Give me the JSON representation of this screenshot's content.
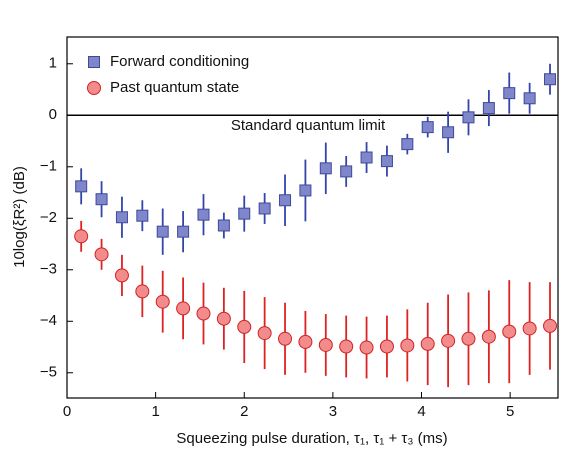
{
  "chart_data": {
    "type": "scatter",
    "xlabel": "Squeezing pulse duration, τ₁, τ₁ + τ₃ (ms)",
    "ylabel": "10log(ξR²) (dB)",
    "annotation": "Standard quantum limit",
    "hline": 0,
    "legend": "upper left",
    "x": [
      0.16,
      0.39,
      0.62,
      0.85,
      1.08,
      1.31,
      1.54,
      1.77,
      2.0,
      2.23,
      2.46,
      2.69,
      2.92,
      3.15,
      3.38,
      3.61,
      3.84,
      4.07,
      4.3,
      4.53,
      4.76,
      4.99,
      5.22,
      5.45
    ],
    "series": [
      {
        "name": "Forward conditioning",
        "marker": "square",
        "color": "#7f86c9",
        "edge": "#3d4a9c",
        "errcolor": "#3344aa",
        "values": [
          -1.38,
          -1.63,
          -1.98,
          -1.95,
          -2.26,
          -2.26,
          -1.93,
          -2.14,
          -1.91,
          -1.81,
          -1.65,
          -1.46,
          -1.03,
          -1.09,
          -0.82,
          -0.89,
          -0.56,
          -0.23,
          -0.33,
          -0.04,
          0.14,
          0.43,
          0.33,
          0.7
        ],
        "errors": [
          0.35,
          0.35,
          0.4,
          0.3,
          0.45,
          0.4,
          0.4,
          0.25,
          0.35,
          0.3,
          0.5,
          0.6,
          0.5,
          0.3,
          0.3,
          0.3,
          0.2,
          0.2,
          0.4,
          0.35,
          0.35,
          0.4,
          0.3,
          0.3
        ]
      },
      {
        "name": "Past quantum state",
        "marker": "circle",
        "color": "#f28b8b",
        "edge": "#d02424",
        "errcolor": "#dd2222",
        "values": [
          -2.35,
          -2.7,
          -3.11,
          -3.42,
          -3.62,
          -3.75,
          -3.85,
          -3.95,
          -4.11,
          -4.23,
          -4.34,
          -4.4,
          -4.46,
          -4.49,
          -4.51,
          -4.49,
          -4.47,
          -4.44,
          -4.38,
          -4.34,
          -4.3,
          -4.2,
          -4.14,
          -4.09
        ],
        "errors": [
          0.3,
          0.3,
          0.4,
          0.5,
          0.6,
          0.6,
          0.6,
          0.6,
          0.7,
          0.7,
          0.7,
          0.6,
          0.6,
          0.6,
          0.6,
          0.6,
          0.7,
          0.8,
          0.9,
          0.9,
          0.9,
          1.0,
          0.9,
          0.85
        ]
      }
    ],
    "xlim": [
      0,
      5.54
    ],
    "ylim": [
      -5.49,
      1.52
    ],
    "xticks": [
      0,
      1,
      2,
      3,
      4,
      5
    ],
    "yticks": [
      {
        "value": -5,
        "label": "−5"
      },
      {
        "value": -4,
        "label": "−4"
      },
      {
        "value": -3,
        "label": "−3"
      },
      {
        "value": -2,
        "label": "−2"
      },
      {
        "value": -1,
        "label": "−1"
      },
      0,
      1
    ]
  }
}
